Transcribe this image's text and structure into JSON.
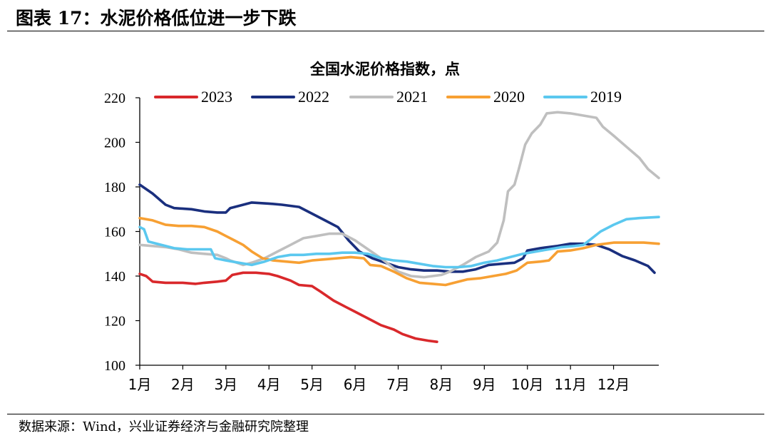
{
  "figure": {
    "title": "图表 17：水泥价格低位进一步下跌",
    "source": "数据来源：Wind，兴业证券经济与金融研究院整理"
  },
  "chart_data": {
    "type": "line",
    "title": "全国水泥价格指数，点",
    "xlabel": "",
    "ylabel": "",
    "ylim": [
      100,
      220
    ],
    "yticks": [
      "100",
      "120",
      "140",
      "160",
      "180",
      "200",
      "220"
    ],
    "xlim": [
      1,
      13.05
    ],
    "month_labels": [
      "1月",
      "2月",
      "3月",
      "4月",
      "5月",
      "6月",
      "7月",
      "8月",
      "9月",
      "10月",
      "11月",
      "12月"
    ],
    "grid": false,
    "legend_position": "top",
    "series": [
      {
        "name": "2023",
        "color": "#d9282b",
        "points": [
          [
            1.0,
            141
          ],
          [
            1.15,
            140
          ],
          [
            1.3,
            137.5
          ],
          [
            1.6,
            137
          ],
          [
            2.0,
            137
          ],
          [
            2.3,
            136.5
          ],
          [
            2.5,
            137
          ],
          [
            2.8,
            137.5
          ],
          [
            3.0,
            138
          ],
          [
            3.15,
            140.5
          ],
          [
            3.4,
            141.5
          ],
          [
            3.7,
            141.5
          ],
          [
            4.0,
            141
          ],
          [
            4.2,
            140
          ],
          [
            4.5,
            138
          ],
          [
            4.7,
            136
          ],
          [
            5.0,
            135.5
          ],
          [
            5.2,
            133
          ],
          [
            5.5,
            129
          ],
          [
            5.8,
            126
          ],
          [
            6.0,
            124
          ],
          [
            6.3,
            121
          ],
          [
            6.6,
            118
          ],
          [
            6.9,
            116
          ],
          [
            7.1,
            114
          ],
          [
            7.4,
            112
          ],
          [
            7.7,
            111
          ],
          [
            7.9,
            110.5
          ]
        ]
      },
      {
        "name": "2022",
        "color": "#1a2f7e",
        "points": [
          [
            1.0,
            181
          ],
          [
            1.3,
            177
          ],
          [
            1.6,
            172
          ],
          [
            1.8,
            170.5
          ],
          [
            2.2,
            170
          ],
          [
            2.5,
            169
          ],
          [
            2.8,
            168.5
          ],
          [
            3.0,
            168.5
          ],
          [
            3.1,
            170.5
          ],
          [
            3.3,
            171.5
          ],
          [
            3.6,
            173
          ],
          [
            4.0,
            172.5
          ],
          [
            4.3,
            172
          ],
          [
            4.7,
            171
          ],
          [
            5.0,
            168
          ],
          [
            5.3,
            165
          ],
          [
            5.6,
            162
          ],
          [
            5.85,
            156
          ],
          [
            6.1,
            151
          ],
          [
            6.4,
            148
          ],
          [
            6.7,
            146
          ],
          [
            7.0,
            144
          ],
          [
            7.3,
            143
          ],
          [
            7.6,
            142.5
          ],
          [
            7.9,
            142.5
          ],
          [
            8.2,
            142
          ],
          [
            8.5,
            142
          ],
          [
            8.8,
            143
          ],
          [
            9.1,
            145
          ],
          [
            9.4,
            145.5
          ],
          [
            9.7,
            146
          ],
          [
            9.9,
            148
          ],
          [
            10.0,
            151.5
          ],
          [
            10.3,
            152.5
          ],
          [
            10.7,
            153.5
          ],
          [
            11.0,
            154.5
          ],
          [
            11.3,
            154.5
          ],
          [
            11.6,
            154
          ],
          [
            11.9,
            152
          ],
          [
            12.2,
            149
          ],
          [
            12.5,
            147
          ],
          [
            12.8,
            144.5
          ],
          [
            12.95,
            141.5
          ]
        ]
      },
      {
        "name": "2021",
        "color": "#bfbfbf",
        "points": [
          [
            1.0,
            154
          ],
          [
            1.3,
            153.5
          ],
          [
            1.6,
            153
          ],
          [
            1.9,
            152
          ],
          [
            2.2,
            150.5
          ],
          [
            2.5,
            150
          ],
          [
            2.8,
            149.5
          ],
          [
            3.0,
            148
          ],
          [
            3.1,
            147
          ],
          [
            3.4,
            145
          ],
          [
            3.6,
            146
          ],
          [
            3.9,
            148
          ],
          [
            4.2,
            151
          ],
          [
            4.5,
            154
          ],
          [
            4.8,
            157
          ],
          [
            5.1,
            158
          ],
          [
            5.4,
            159
          ],
          [
            5.7,
            159
          ],
          [
            6.0,
            156
          ],
          [
            6.3,
            152
          ],
          [
            6.6,
            148
          ],
          [
            7.0,
            142
          ],
          [
            7.3,
            140
          ],
          [
            7.6,
            139.5
          ],
          [
            8.0,
            140.5
          ],
          [
            8.2,
            142
          ],
          [
            8.5,
            145
          ],
          [
            8.8,
            148.5
          ],
          [
            9.1,
            151
          ],
          [
            9.3,
            155
          ],
          [
            9.45,
            165
          ],
          [
            9.55,
            178
          ],
          [
            9.7,
            181
          ],
          [
            9.8,
            188
          ],
          [
            9.95,
            199
          ],
          [
            10.1,
            204
          ],
          [
            10.3,
            208
          ],
          [
            10.45,
            213
          ],
          [
            10.7,
            213.5
          ],
          [
            11.0,
            213
          ],
          [
            11.3,
            212
          ],
          [
            11.6,
            211
          ],
          [
            11.75,
            207
          ],
          [
            12.0,
            203
          ],
          [
            12.3,
            198
          ],
          [
            12.6,
            193
          ],
          [
            12.8,
            188
          ],
          [
            13.05,
            184
          ]
        ]
      },
      {
        "name": "2020",
        "color": "#f7a033",
        "points": [
          [
            1.0,
            166
          ],
          [
            1.3,
            165
          ],
          [
            1.6,
            163
          ],
          [
            1.9,
            162.5
          ],
          [
            2.2,
            162.5
          ],
          [
            2.5,
            162
          ],
          [
            2.8,
            160
          ],
          [
            3.0,
            158
          ],
          [
            3.2,
            156
          ],
          [
            3.4,
            154
          ],
          [
            3.6,
            151
          ],
          [
            3.85,
            148
          ],
          [
            4.1,
            147
          ],
          [
            4.4,
            146.5
          ],
          [
            4.7,
            146
          ],
          [
            5.0,
            147
          ],
          [
            5.3,
            147.5
          ],
          [
            5.6,
            148
          ],
          [
            5.9,
            148.5
          ],
          [
            6.2,
            148
          ],
          [
            6.35,
            145
          ],
          [
            6.6,
            144.5
          ],
          [
            6.9,
            142
          ],
          [
            7.2,
            139
          ],
          [
            7.5,
            137
          ],
          [
            7.8,
            136.5
          ],
          [
            8.1,
            136
          ],
          [
            8.3,
            137
          ],
          [
            8.6,
            138.5
          ],
          [
            8.9,
            139
          ],
          [
            9.2,
            140
          ],
          [
            9.5,
            141
          ],
          [
            9.75,
            142.5
          ],
          [
            10.0,
            146
          ],
          [
            10.3,
            146.5
          ],
          [
            10.5,
            147
          ],
          [
            10.7,
            151
          ],
          [
            11.0,
            151.5
          ],
          [
            11.3,
            152.5
          ],
          [
            11.6,
            154
          ],
          [
            12.0,
            155
          ],
          [
            12.4,
            155
          ],
          [
            12.7,
            155
          ],
          [
            13.05,
            154.5
          ]
        ]
      },
      {
        "name": "2019",
        "color": "#5bc8ef",
        "points": [
          [
            1.0,
            162
          ],
          [
            1.1,
            161
          ],
          [
            1.2,
            155.5
          ],
          [
            1.5,
            154
          ],
          [
            1.8,
            152.5
          ],
          [
            2.1,
            152
          ],
          [
            2.4,
            152
          ],
          [
            2.65,
            152
          ],
          [
            2.75,
            148
          ],
          [
            3.0,
            147
          ],
          [
            3.3,
            146
          ],
          [
            3.6,
            145
          ],
          [
            3.9,
            146.5
          ],
          [
            4.2,
            148.5
          ],
          [
            4.5,
            149.5
          ],
          [
            4.8,
            149.5
          ],
          [
            5.1,
            150
          ],
          [
            5.4,
            150
          ],
          [
            5.7,
            150.5
          ],
          [
            6.0,
            150.5
          ],
          [
            6.3,
            150
          ],
          [
            6.6,
            148
          ],
          [
            6.9,
            147
          ],
          [
            7.2,
            146.5
          ],
          [
            7.5,
            145.5
          ],
          [
            7.8,
            144.5
          ],
          [
            8.1,
            144
          ],
          [
            8.4,
            144
          ],
          [
            8.7,
            144.5
          ],
          [
            9.0,
            146
          ],
          [
            9.3,
            147
          ],
          [
            9.6,
            148.5
          ],
          [
            9.9,
            150
          ],
          [
            10.2,
            151
          ],
          [
            10.5,
            152
          ],
          [
            10.8,
            153
          ],
          [
            11.1,
            153.5
          ],
          [
            11.3,
            154
          ],
          [
            11.5,
            157
          ],
          [
            11.7,
            160
          ],
          [
            12.0,
            163
          ],
          [
            12.3,
            165.5
          ],
          [
            12.6,
            166
          ],
          [
            13.05,
            166.5
          ]
        ]
      }
    ]
  }
}
